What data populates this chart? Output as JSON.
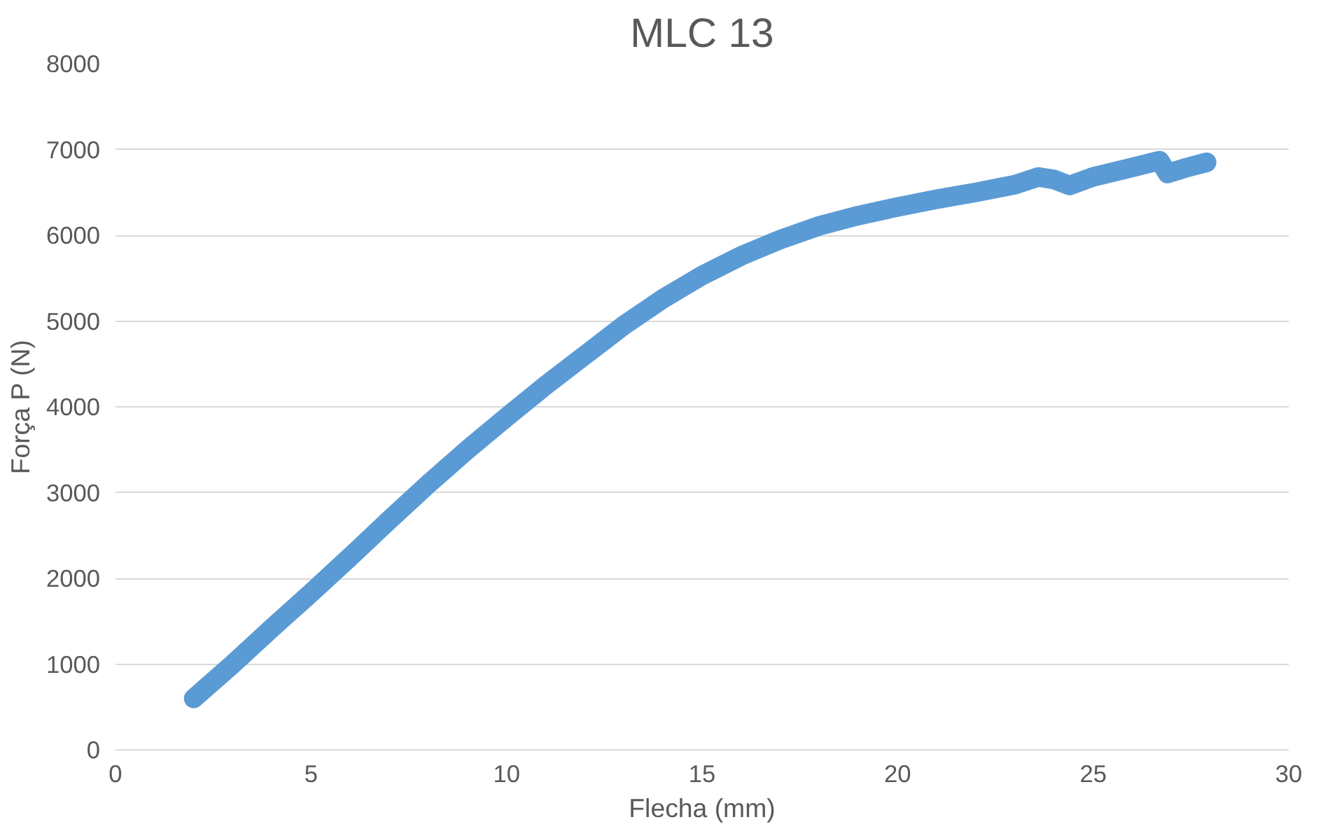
{
  "chart_data": {
    "type": "line",
    "title": "MLC 13",
    "xlabel": "Flecha (mm)",
    "ylabel": "Força P (N)",
    "x": [
      2.0,
      3,
      4,
      5,
      6,
      7,
      8,
      9,
      10,
      11,
      12,
      13,
      14,
      15,
      16,
      17,
      18,
      19,
      20,
      21,
      22,
      23,
      23.6,
      24.0,
      24.4,
      25,
      26,
      26.7,
      26.9,
      27.4,
      27.9
    ],
    "series": [
      {
        "color": "#5b9bd5",
        "values": [
          600,
          1000,
          1420,
          1830,
          2250,
          2680,
          3100,
          3500,
          3880,
          4250,
          4600,
          4950,
          5260,
          5530,
          5760,
          5950,
          6110,
          6230,
          6330,
          6420,
          6500,
          6590,
          6680,
          6650,
          6580,
          6680,
          6790,
          6870,
          6720,
          6790,
          6850
        ]
      }
    ],
    "xlim": [
      0,
      30
    ],
    "xticks": [
      0,
      5,
      10,
      15,
      20,
      25,
      30
    ],
    "ylim": [
      0,
      8000
    ],
    "yticks": [
      0,
      1000,
      2000,
      3000,
      4000,
      5000,
      6000,
      7000,
      8000
    ],
    "grid": "y",
    "line_style": "solid"
  }
}
